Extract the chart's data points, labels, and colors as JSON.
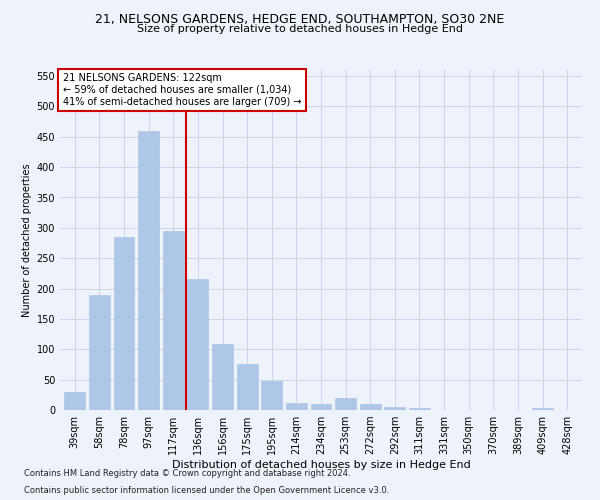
{
  "title1": "21, NELSONS GARDENS, HEDGE END, SOUTHAMPTON, SO30 2NE",
  "title2": "Size of property relative to detached houses in Hedge End",
  "xlabel": "Distribution of detached houses by size in Hedge End",
  "ylabel": "Number of detached properties",
  "footnote1": "Contains HM Land Registry data © Crown copyright and database right 2024.",
  "footnote2": "Contains public sector information licensed under the Open Government Licence v3.0.",
  "annotation_line1": "21 NELSONS GARDENS: 122sqm",
  "annotation_line2": "← 59% of detached houses are smaller (1,034)",
  "annotation_line3": "41% of semi-detached houses are larger (709) →",
  "bar_color": "#aec6e8",
  "vline_color": "#cc0000",
  "background_color": "#eef2fb",
  "categories": [
    "39sqm",
    "58sqm",
    "78sqm",
    "97sqm",
    "117sqm",
    "136sqm",
    "156sqm",
    "175sqm",
    "195sqm",
    "214sqm",
    "234sqm",
    "253sqm",
    "272sqm",
    "292sqm",
    "311sqm",
    "331sqm",
    "350sqm",
    "370sqm",
    "389sqm",
    "409sqm",
    "428sqm"
  ],
  "values": [
    30,
    190,
    285,
    460,
    295,
    215,
    108,
    75,
    47,
    12,
    10,
    20,
    10,
    5,
    4,
    0,
    0,
    0,
    0,
    4,
    0
  ],
  "ylim": [
    0,
    560
  ],
  "yticks": [
    0,
    50,
    100,
    150,
    200,
    250,
    300,
    350,
    400,
    450,
    500,
    550
  ],
  "vline_x_index": 4.5,
  "grid_color": "#c8d0e0",
  "title1_fontsize": 9,
  "title2_fontsize": 8,
  "xlabel_fontsize": 8,
  "ylabel_fontsize": 7,
  "tick_fontsize": 7,
  "annot_fontsize": 7,
  "footnote_fontsize": 6
}
